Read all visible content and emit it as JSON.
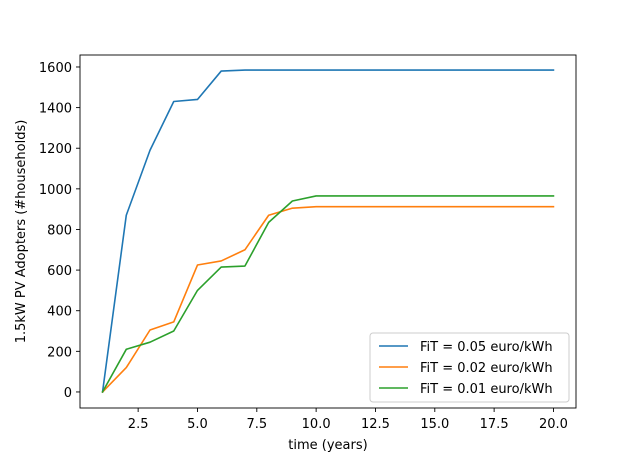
{
  "chart_data": {
    "type": "line",
    "title": "",
    "xlabel": "time (years)",
    "ylabel": "1.5kW PV Adopters (#households)",
    "xlim": [
      0.05,
      20.95
    ],
    "ylim": [
      -79,
      1659
    ],
    "xticks": [
      2.5,
      5.0,
      7.5,
      10.0,
      12.5,
      15.0,
      17.5,
      20.0
    ],
    "xtick_labels": [
      "2.5",
      "5.0",
      "7.5",
      "10.0",
      "12.5",
      "15.0",
      "17.5",
      "20.0"
    ],
    "yticks": [
      0,
      200,
      400,
      600,
      800,
      1000,
      1200,
      1400,
      1600
    ],
    "ytick_labels": [
      "0",
      "200",
      "400",
      "600",
      "800",
      "1000",
      "1200",
      "1400",
      "1600"
    ],
    "grid": false,
    "legend_position": "lower-right",
    "x": [
      1,
      2,
      3,
      4,
      5,
      6,
      7,
      8,
      9,
      10,
      11,
      12,
      13,
      14,
      15,
      16,
      17,
      18,
      19,
      20
    ],
    "series": [
      {
        "name": "FiT = 0.05 euro/kWh",
        "color": "#1f77b4",
        "values": [
          0,
          870,
          1190,
          1430,
          1440,
          1580,
          1585,
          1585,
          1585,
          1585,
          1585,
          1585,
          1585,
          1585,
          1585,
          1585,
          1585,
          1585,
          1585,
          1585
        ]
      },
      {
        "name": "FiT = 0.02 euro/kWh",
        "color": "#ff7f0e",
        "values": [
          0,
          120,
          305,
          345,
          625,
          645,
          700,
          870,
          905,
          912,
          912,
          912,
          912,
          912,
          912,
          912,
          912,
          912,
          912,
          912
        ]
      },
      {
        "name": "FiT = 0.01 euro/kWh",
        "color": "#2ca02c",
        "values": [
          0,
          210,
          245,
          300,
          500,
          615,
          620,
          835,
          940,
          965,
          965,
          965,
          965,
          965,
          965,
          965,
          965,
          965,
          965,
          965
        ]
      }
    ]
  }
}
